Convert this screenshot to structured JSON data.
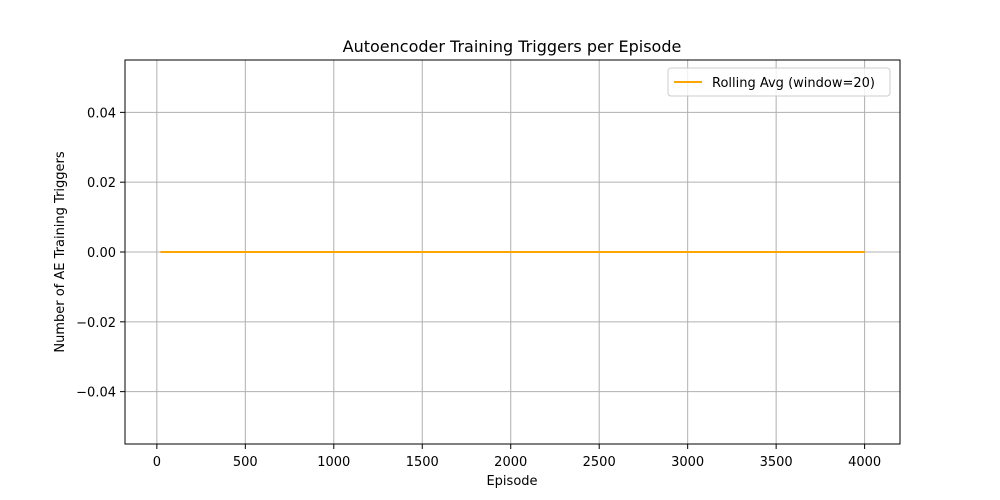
{
  "chart_data": {
    "type": "line",
    "title": "Autoencoder Training Triggers per Episode",
    "xlabel": "Episode",
    "ylabel": "Number of AE Training Triggers",
    "xlim": [
      -180,
      4200
    ],
    "ylim": [
      -0.055,
      0.055
    ],
    "x_ticks": [
      0,
      500,
      1000,
      1500,
      2000,
      2500,
      3000,
      3500,
      4000
    ],
    "y_ticks": [
      -0.04,
      -0.02,
      0.0,
      0.02,
      0.04
    ],
    "x_tick_labels": [
      "0",
      "500",
      "1000",
      "1500",
      "2000",
      "2500",
      "3000",
      "3500",
      "4000"
    ],
    "y_tick_labels": [
      "−0.04",
      "−0.02",
      "0.00",
      "0.02",
      "0.04"
    ],
    "grid": true,
    "legend_position": "top-right",
    "series": [
      {
        "name": "Rolling Avg (window=20)",
        "color": "#ffa500",
        "x": [
          20,
          4000
        ],
        "y": [
          0.0,
          0.0
        ]
      }
    ]
  }
}
